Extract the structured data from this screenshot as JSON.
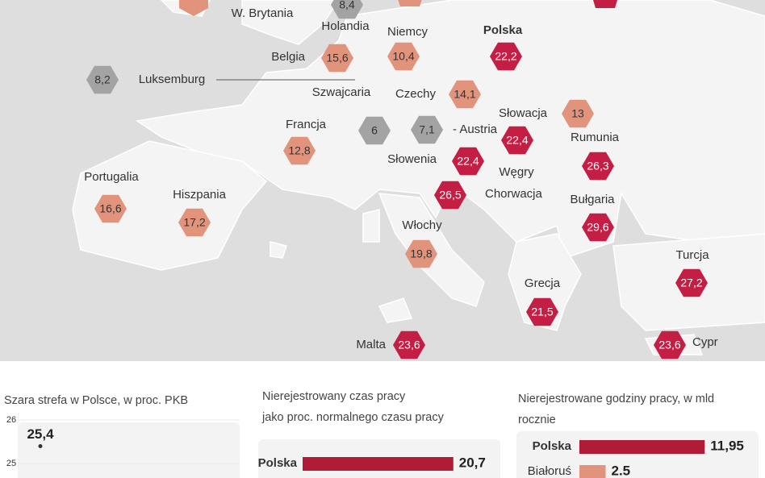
{
  "map": {
    "labels": [
      "W. Brytania"
    ],
    "markers": [
      {
        "label": "Holandia",
        "value": "8,4",
        "color": "#a3a3a3"
      },
      {
        "label": "Niemcy",
        "value": "10,4",
        "color": "#e2937c"
      },
      {
        "label": "Polska",
        "value": "22,2",
        "color": "#c41e45"
      },
      {
        "label": "Belgia",
        "value": "15,6",
        "color": "#e2937c"
      },
      {
        "label": "Luksemburg",
        "value": "8,2",
        "color": "#a3a3a3"
      },
      {
        "label": "Szwajcaria",
        "value": "6",
        "color": "#a3a3a3"
      },
      {
        "label": "Czechy",
        "value": "14,1",
        "color": "#e2937c"
      },
      {
        "label": "Słowacja",
        "value": "13",
        "color": "#e2937c"
      },
      {
        "label": "Francja",
        "value": "12,8",
        "color": "#e2937c"
      },
      {
        "label": "- Austria",
        "value": "7,1",
        "color": "#a3a3a3"
      },
      {
        "label": "Węgry",
        "value": "22,4",
        "color": "#c41e45"
      },
      {
        "label": "Rumunia",
        "value": "26,3",
        "color": "#c41e45"
      },
      {
        "label": "Słowenia",
        "value": "22,4",
        "color": "#c41e45"
      },
      {
        "label": "Portugalia",
        "value": "16,6",
        "color": "#e2937c"
      },
      {
        "label": "Hiszpania",
        "value": "17,2",
        "color": "#e2937c"
      },
      {
        "label": "Chorwacja",
        "value": "26,5",
        "color": "#c41e45"
      },
      {
        "label": "Bułgaria",
        "value": "29,6",
        "color": "#c41e45"
      },
      {
        "label": "Włochy",
        "value": "19,8",
        "color": "#e2937c"
      },
      {
        "label": "Turcja",
        "value": "27,2",
        "color": "#c41e45"
      },
      {
        "label": "Grecja",
        "value": "21,5",
        "color": "#c41e45"
      },
      {
        "label": "Malta",
        "value": "23,6",
        "color": "#c41e45"
      },
      {
        "label": "Cypr",
        "value": "23,6",
        "color": "#c41e45"
      }
    ]
  },
  "chart_data": [
    {
      "type": "line",
      "title": [
        "Szara strefa w Polsce, w proc. PKB"
      ],
      "values": [
        25.4
      ],
      "value_labels": [
        "25,4"
      ],
      "color": "#e2937c",
      "ylim": [
        24.67,
        26
      ],
      "yticks": [
        25,
        26
      ]
    },
    {
      "type": "bar",
      "orientation": "horizontal",
      "title": [
        "Nierejestrowany czas pracy",
        "jako proc. normalnego czasu pracy"
      ],
      "categories": [
        "Polska"
      ],
      "values": [
        20.7
      ],
      "value_labels": [
        "20,7"
      ],
      "color": "#b01c35",
      "xlim": [
        0,
        26.6
      ]
    },
    {
      "type": "bar",
      "orientation": "horizontal",
      "title": [
        "Nierejestrowane godziny pracy, w mld",
        "rocznie"
      ],
      "categories": [
        "Polska",
        "Białoruś"
      ],
      "values": [
        11.95,
        2.5
      ],
      "value_labels": [
        "11,95",
        "2.5"
      ],
      "colors": [
        "#b01c35",
        "#e2937c"
      ],
      "xlim": [
        0,
        16.7
      ]
    }
  ]
}
